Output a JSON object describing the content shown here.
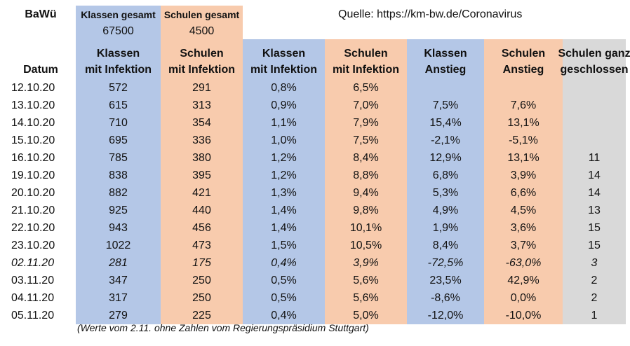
{
  "region": "BaWü",
  "source": "Quelle: https://km-bw.de/Coronavirus",
  "totals": {
    "klassen_label": "Klassen gesamt",
    "klassen_value": "67500",
    "schulen_label": "Schulen gesamt",
    "schulen_value": "4500"
  },
  "headers": {
    "datum": "Datum",
    "klassen_inf": [
      "Klassen",
      "mit Infektion"
    ],
    "schulen_inf": [
      "Schulen",
      "mit Infektion"
    ],
    "klassen_pct": [
      "Klassen",
      "mit Infektion"
    ],
    "schulen_pct": [
      "Schulen",
      "mit Infektion"
    ],
    "klassen_anstieg": [
      "Klassen",
      "Anstieg"
    ],
    "schulen_anstieg": [
      "Schulen",
      "Anstieg"
    ],
    "geschlossen": [
      "Schulen ganz",
      "geschlossen"
    ]
  },
  "rows": [
    {
      "datum": "12.10.20",
      "klassen": "572",
      "schulen": "291",
      "klassen_pct": "0,8%",
      "schulen_pct": "6,5%",
      "klassen_anstieg": "",
      "schulen_anstieg": "",
      "geschlossen": "",
      "italic": false
    },
    {
      "datum": "13.10.20",
      "klassen": "615",
      "schulen": "313",
      "klassen_pct": "0,9%",
      "schulen_pct": "7,0%",
      "klassen_anstieg": "7,5%",
      "schulen_anstieg": "7,6%",
      "geschlossen": "",
      "italic": false
    },
    {
      "datum": "14.10.20",
      "klassen": "710",
      "schulen": "354",
      "klassen_pct": "1,1%",
      "schulen_pct": "7,9%",
      "klassen_anstieg": "15,4%",
      "schulen_anstieg": "13,1%",
      "geschlossen": "",
      "italic": false
    },
    {
      "datum": "15.10.20",
      "klassen": "695",
      "schulen": "336",
      "klassen_pct": "1,0%",
      "schulen_pct": "7,5%",
      "klassen_anstieg": "-2,1%",
      "schulen_anstieg": "-5,1%",
      "geschlossen": "",
      "italic": false
    },
    {
      "datum": "16.10.20",
      "klassen": "785",
      "schulen": "380",
      "klassen_pct": "1,2%",
      "schulen_pct": "8,4%",
      "klassen_anstieg": "12,9%",
      "schulen_anstieg": "13,1%",
      "geschlossen": "11",
      "italic": false
    },
    {
      "datum": "19.10.20",
      "klassen": "838",
      "schulen": "395",
      "klassen_pct": "1,2%",
      "schulen_pct": "8,8%",
      "klassen_anstieg": "6,8%",
      "schulen_anstieg": "3,9%",
      "geschlossen": "14",
      "italic": false
    },
    {
      "datum": "20.10.20",
      "klassen": "882",
      "schulen": "421",
      "klassen_pct": "1,3%",
      "schulen_pct": "9,4%",
      "klassen_anstieg": "5,3%",
      "schulen_anstieg": "6,6%",
      "geschlossen": "14",
      "italic": false
    },
    {
      "datum": "21.10.20",
      "klassen": "925",
      "schulen": "440",
      "klassen_pct": "1,4%",
      "schulen_pct": "9,8%",
      "klassen_anstieg": "4,9%",
      "schulen_anstieg": "4,5%",
      "geschlossen": "13",
      "italic": false
    },
    {
      "datum": "22.10.20",
      "klassen": "943",
      "schulen": "456",
      "klassen_pct": "1,4%",
      "schulen_pct": "10,1%",
      "klassen_anstieg": "1,9%",
      "schulen_anstieg": "3,6%",
      "geschlossen": "15",
      "italic": false
    },
    {
      "datum": "23.10.20",
      "klassen": "1022",
      "schulen": "473",
      "klassen_pct": "1,5%",
      "schulen_pct": "10,5%",
      "klassen_anstieg": "8,4%",
      "schulen_anstieg": "3,7%",
      "geschlossen": "15",
      "italic": false
    },
    {
      "datum": "02.11.20",
      "klassen": "281",
      "schulen": "175",
      "klassen_pct": "0,4%",
      "schulen_pct": "3,9%",
      "klassen_anstieg": "-72,5%",
      "schulen_anstieg": "-63,0%",
      "geschlossen": "3",
      "italic": true
    },
    {
      "datum": "03.11.20",
      "klassen": "347",
      "schulen": "250",
      "klassen_pct": "0,5%",
      "schulen_pct": "5,6%",
      "klassen_anstieg": "23,5%",
      "schulen_anstieg": "42,9%",
      "geschlossen": "2",
      "italic": false
    },
    {
      "datum": "04.11.20",
      "klassen": "317",
      "schulen": "250",
      "klassen_pct": "0,5%",
      "schulen_pct": "5,6%",
      "klassen_anstieg": "-8,6%",
      "schulen_anstieg": "0,0%",
      "geschlossen": "2",
      "italic": false
    },
    {
      "datum": "05.11.20",
      "klassen": "279",
      "schulen": "225",
      "klassen_pct": "0,4%",
      "schulen_pct": "5,0%",
      "klassen_anstieg": "-12,0%",
      "schulen_anstieg": "-10,0%",
      "geschlossen": "1",
      "italic": false
    }
  ],
  "footnote": "(Werte vom 2.11. ohne Zahlen vom Regierungspräsidium Stuttgart)"
}
